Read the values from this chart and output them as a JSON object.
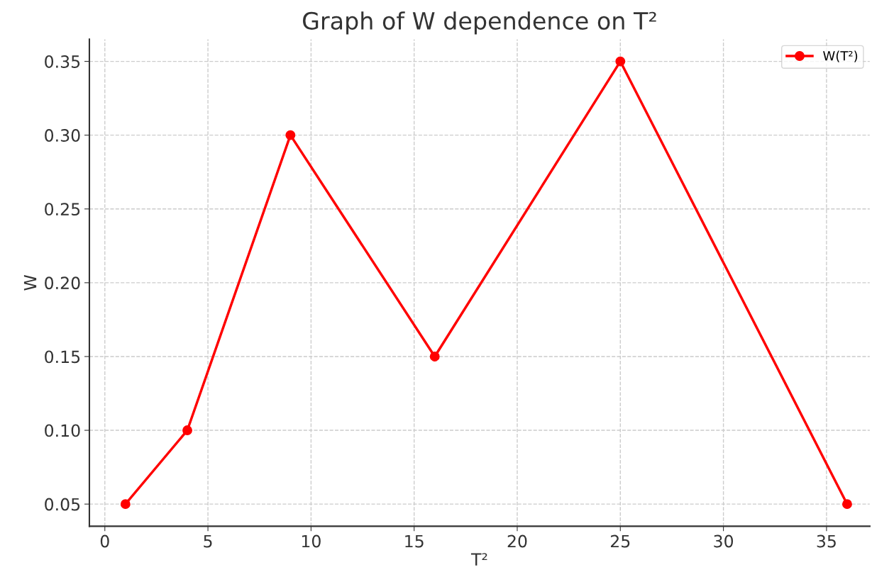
{
  "chart_data": {
    "type": "line",
    "title": "Graph of W dependence on T²",
    "xlabel": "T²",
    "ylabel": "W",
    "x": [
      1,
      4,
      9,
      16,
      25,
      36
    ],
    "series": [
      {
        "name": "W(T²)",
        "color": "#ff0000",
        "values": [
          0.05,
          0.1,
          0.3,
          0.15,
          0.35,
          0.05
        ]
      }
    ],
    "xlim": [
      -0.75,
      37.1
    ],
    "xticks": [
      0,
      5,
      10,
      15,
      20,
      25,
      30,
      35
    ],
    "ylim": [
      0.035,
      0.365
    ],
    "yticks": [
      {
        "value": 0.05,
        "label": "0.05"
      },
      {
        "value": 0.1,
        "label": "0.10"
      },
      {
        "value": 0.15,
        "label": "0.15"
      },
      {
        "value": 0.2,
        "label": "0.20"
      },
      {
        "value": 0.25,
        "label": "0.25"
      },
      {
        "value": 0.3,
        "label": "0.30"
      },
      {
        "value": 0.35,
        "label": "0.35"
      }
    ],
    "grid": true,
    "legend": "top right",
    "marker": "circle",
    "line_style": "solid"
  }
}
